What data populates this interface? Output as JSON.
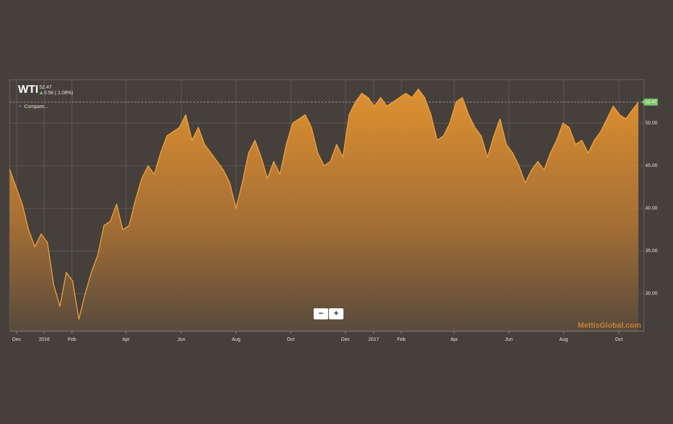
{
  "chart_data": {
    "type": "area",
    "title": "WTI",
    "last_price": "52.47",
    "change": "0.56 ( 1.08%)",
    "compare": "Compare...",
    "watermark": "MettisGlobal.com",
    "controls": {
      "zoom_out": "−",
      "zoom_in": "+"
    },
    "color": "#f5a23a",
    "values": [
      44.6,
      42.5,
      40.5,
      37.5,
      35.5,
      37.0,
      36.0,
      31.0,
      28.5,
      32.5,
      31.5,
      27.0,
      30.0,
      32.5,
      34.5,
      38.0,
      38.5,
      40.5,
      37.5,
      38.0,
      41.0,
      43.5,
      45.0,
      44.0,
      46.5,
      48.5,
      49.0,
      49.5,
      51.0,
      48.0,
      49.5,
      47.5,
      46.5,
      45.5,
      44.5,
      43.0,
      40.0,
      43.0,
      46.5,
      48.0,
      46.0,
      43.5,
      45.5,
      44.0,
      47.5,
      50.0,
      50.5,
      51.0,
      49.5,
      46.5,
      45.0,
      45.5,
      47.5,
      46.0,
      51.0,
      52.5,
      53.5,
      53.0,
      52.0,
      53.0,
      52.0,
      52.5,
      53.0,
      53.5,
      53.0,
      54.0,
      53.0,
      51.0,
      48.0,
      48.5,
      50.0,
      52.5,
      53.0,
      51.0,
      49.5,
      48.5,
      46.0,
      48.5,
      50.5,
      47.5,
      46.5,
      45.0,
      43.0,
      44.5,
      45.5,
      44.5,
      46.5,
      48.0,
      50.0,
      49.5,
      47.5,
      48.0,
      46.5,
      48.0,
      49.0,
      50.5,
      52.0,
      51.0,
      50.5,
      51.5,
      52.47
    ],
    "xlim": [
      0,
      100
    ],
    "xticks": [
      {
        "value": 1.1,
        "label": "Dec"
      },
      {
        "value": 5.5,
        "label": "2016"
      },
      {
        "value": 9.9,
        "label": "Feb"
      },
      {
        "value": 18.5,
        "label": "Apr"
      },
      {
        "value": 27.3,
        "label": "Jun"
      },
      {
        "value": 36.0,
        "label": "Aug"
      },
      {
        "value": 44.7,
        "label": "Oct"
      },
      {
        "value": 53.4,
        "label": "Dec"
      },
      {
        "value": 57.9,
        "label": "2017"
      },
      {
        "value": 62.3,
        "label": "Feb"
      },
      {
        "value": 70.7,
        "label": "Apr"
      },
      {
        "value": 79.4,
        "label": "Jun"
      },
      {
        "value": 88.1,
        "label": "Aug"
      },
      {
        "value": 96.9,
        "label": "Oct"
      }
    ],
    "ylim": [
      25.6,
      55.1
    ],
    "yticks": [
      {
        "value": 30,
        "label": "30.00"
      },
      {
        "value": 35,
        "label": "35.00"
      },
      {
        "value": 40,
        "label": "40.00"
      },
      {
        "value": 45,
        "label": "45.00"
      },
      {
        "value": 50,
        "label": "50.00"
      }
    ],
    "grid": true
  }
}
